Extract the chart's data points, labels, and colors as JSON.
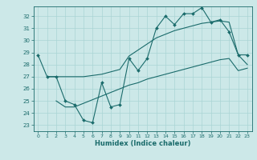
{
  "xlabel": "Humidex (Indice chaleur)",
  "bg_color": "#cce8e8",
  "grid_color": "#aad4d4",
  "line_color": "#1a6b6b",
  "xlim": [
    -0.5,
    23.5
  ],
  "ylim": [
    22.5,
    32.8
  ],
  "yticks": [
    23,
    24,
    25,
    26,
    27,
    28,
    29,
    30,
    31,
    32
  ],
  "xticks": [
    0,
    1,
    2,
    3,
    4,
    5,
    6,
    7,
    8,
    9,
    10,
    11,
    12,
    13,
    14,
    15,
    16,
    17,
    18,
    19,
    20,
    21,
    22,
    23
  ],
  "line1_x": [
    0,
    1,
    2,
    3,
    4,
    5,
    6,
    7,
    8,
    9,
    10,
    11,
    12,
    13,
    14,
    15,
    16,
    17,
    18,
    19,
    20,
    21,
    22,
    23
  ],
  "line1_y": [
    28.8,
    27.0,
    27.0,
    25.0,
    24.7,
    23.4,
    23.2,
    26.5,
    24.5,
    24.7,
    28.5,
    27.5,
    28.5,
    31.0,
    32.0,
    31.3,
    32.2,
    32.2,
    32.7,
    31.5,
    31.7,
    30.7,
    28.8,
    28.8
  ],
  "line2_x": [
    1,
    2,
    3,
    4,
    5,
    6,
    7,
    8,
    9,
    10,
    11,
    12,
    13,
    14,
    15,
    16,
    17,
    18,
    19,
    20,
    21,
    22,
    23
  ],
  "line2_y": [
    27.0,
    27.0,
    27.0,
    27.0,
    27.0,
    27.1,
    27.2,
    27.4,
    27.6,
    28.7,
    29.2,
    29.7,
    30.2,
    30.5,
    30.8,
    31.0,
    31.2,
    31.4,
    31.5,
    31.6,
    31.5,
    28.8,
    28.0
  ],
  "line3_x": [
    2,
    3,
    4,
    5,
    6,
    7,
    8,
    9,
    10,
    11,
    12,
    13,
    14,
    15,
    16,
    17,
    18,
    19,
    20,
    21,
    22,
    23
  ],
  "line3_y": [
    25.0,
    24.5,
    24.5,
    24.8,
    25.1,
    25.4,
    25.7,
    26.0,
    26.3,
    26.5,
    26.8,
    27.0,
    27.2,
    27.4,
    27.6,
    27.8,
    28.0,
    28.2,
    28.4,
    28.5,
    27.5,
    27.7
  ]
}
